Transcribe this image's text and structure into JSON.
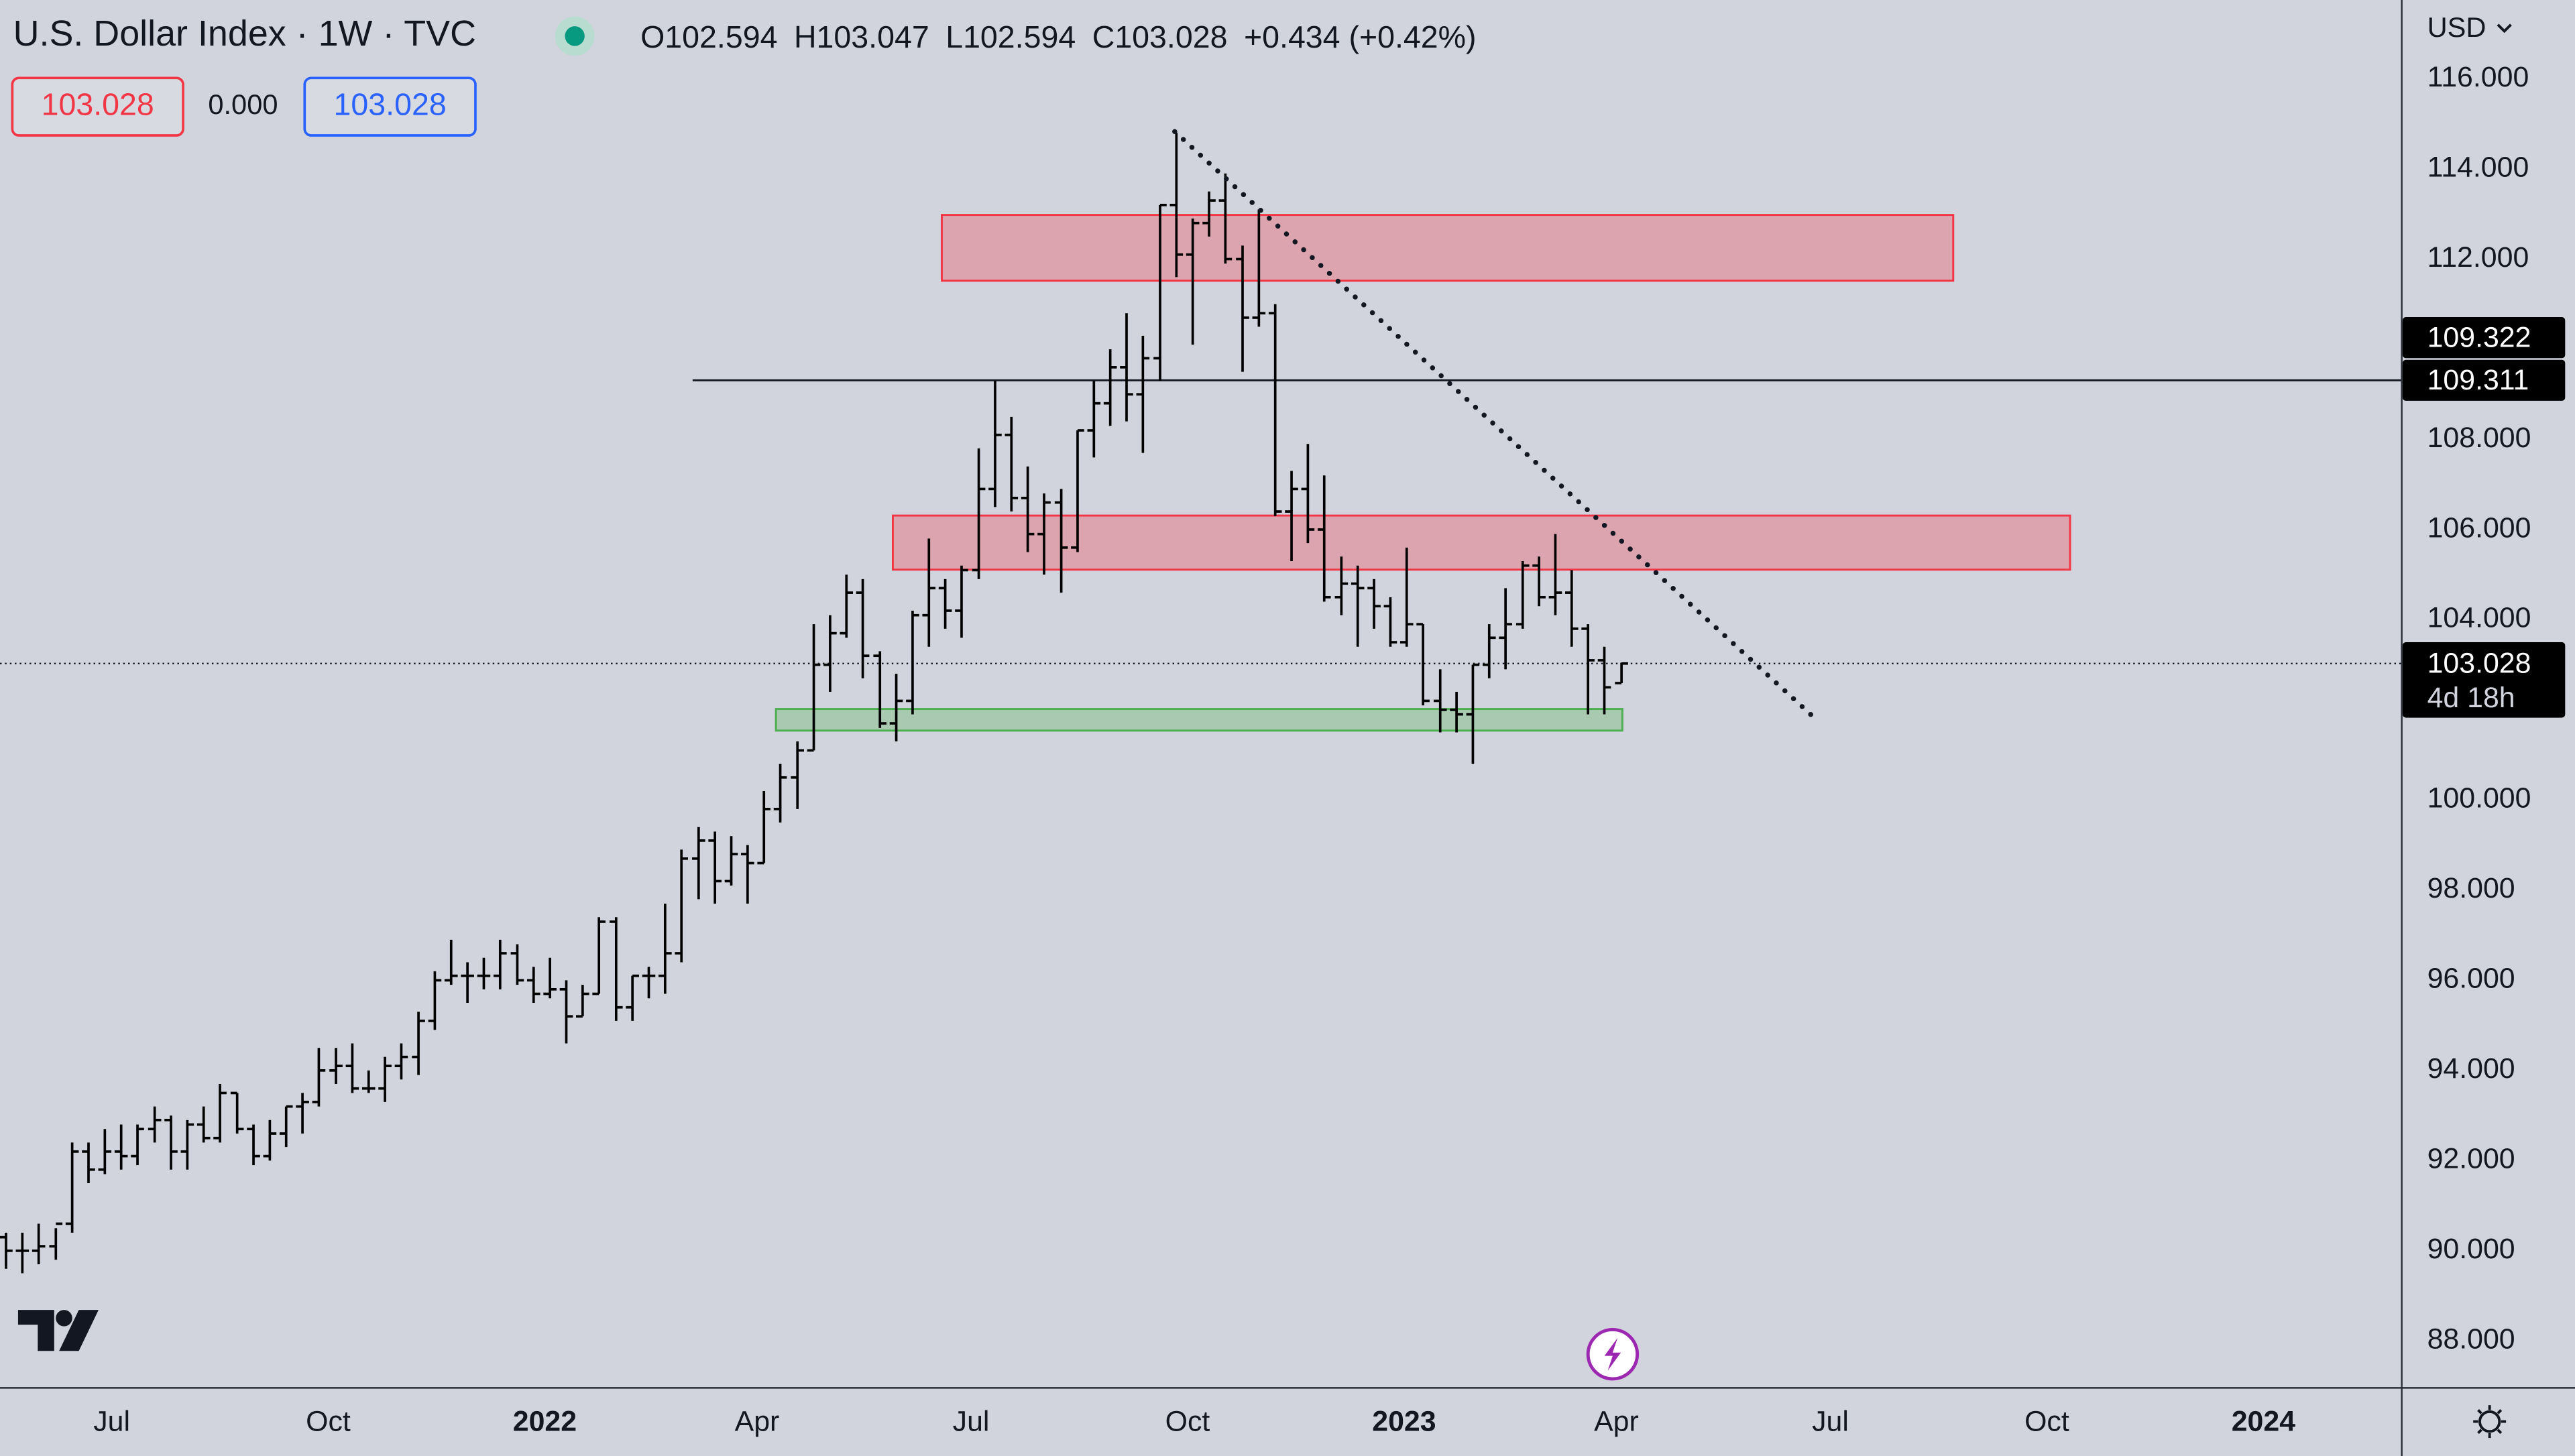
{
  "header": {
    "title": "U.S. Dollar Index · 1W · TVC",
    "ohlc": [
      {
        "label": "O",
        "value": "102.594"
      },
      {
        "label": "H",
        "value": "103.047"
      },
      {
        "label": "L",
        "value": "102.594"
      },
      {
        "label": "C",
        "value": "103.028"
      }
    ],
    "change": "+0.434 (+0.42%)"
  },
  "toolbar": {
    "sell": "103.028",
    "spread": "0.000",
    "buy": "103.028"
  },
  "currency": "USD",
  "chart_data": {
    "type": "ohlc",
    "color": "#000000",
    "x": [
      2021.373,
      2021.392,
      2021.411,
      2021.431,
      2021.45,
      2021.469,
      2021.488,
      2021.507,
      2021.526,
      2021.546,
      2021.565,
      2021.584,
      2021.603,
      2021.622,
      2021.642,
      2021.661,
      2021.68,
      2021.699,
      2021.718,
      2021.737,
      2021.757,
      2021.776,
      2021.795,
      2021.814,
      2021.833,
      2021.853,
      2021.872,
      2021.891,
      2021.91,
      2021.929,
      2021.948,
      2021.968,
      2021.987,
      2022.006,
      2022.025,
      2022.044,
      2022.063,
      2022.083,
      2022.102,
      2022.121,
      2022.14,
      2022.159,
      2022.179,
      2022.198,
      2022.217,
      2022.236,
      2022.255,
      2022.274,
      2022.294,
      2022.313,
      2022.332,
      2022.351,
      2022.37,
      2022.39,
      2022.409,
      2022.428,
      2022.447,
      2022.466,
      2022.485,
      2022.505,
      2022.524,
      2022.543,
      2022.562,
      2022.581,
      2022.601,
      2022.62,
      2022.639,
      2022.658,
      2022.677,
      2022.696,
      2022.716,
      2022.735,
      2022.754,
      2022.773,
      2022.792,
      2022.812,
      2022.831,
      2022.85,
      2022.869,
      2022.888,
      2022.907,
      2022.927,
      2022.946,
      2022.965,
      2022.984,
      2023.003,
      2023.022,
      2023.042,
      2023.061,
      2023.08,
      2023.099,
      2023.118,
      2023.138,
      2023.157,
      2023.176,
      2023.195,
      2023.214,
      2023.233,
      2023.253
    ],
    "open": [
      90.3,
      90.0,
      90.0,
      90.1,
      90.6,
      92.2,
      91.8,
      92.2,
      92.1,
      92.7,
      92.9,
      92.2,
      92.8,
      92.5,
      93.5,
      92.7,
      92.1,
      92.6,
      93.2,
      93.3,
      94.0,
      94.1,
      93.6,
      93.6,
      94.1,
      94.3,
      95.1,
      96.0,
      96.1,
      96.1,
      96.1,
      96.6,
      96.0,
      95.7,
      95.8,
      95.2,
      95.7,
      97.3,
      95.4,
      96.1,
      96.1,
      96.6,
      98.7,
      99.1,
      98.2,
      98.8,
      98.6,
      99.8,
      100.5,
      101.1,
      103.0,
      103.7,
      104.6,
      103.2,
      101.7,
      102.2,
      104.1,
      104.7,
      104.2,
      105.1,
      106.9,
      108.1,
      106.7,
      105.9,
      106.6,
      105.6,
      108.2,
      108.8,
      109.6,
      109.0,
      109.8,
      113.2,
      112.1,
      112.8,
      113.3,
      112.0,
      110.7,
      110.8,
      106.4,
      106.9,
      106.0,
      104.5,
      104.8,
      104.7,
      104.3,
      103.5,
      103.9,
      102.2,
      102.0,
      101.9,
      103.0,
      103.6,
      103.9,
      105.2,
      104.5,
      104.6,
      103.8,
      103.1,
      102.594
    ],
    "high": [
      90.4,
      90.4,
      90.6,
      90.5,
      92.4,
      92.4,
      92.7,
      92.8,
      92.8,
      93.2,
      93.0,
      92.9,
      93.2,
      93.7,
      93.5,
      92.8,
      92.9,
      93.2,
      93.5,
      94.5,
      94.5,
      94.6,
      94.0,
      94.3,
      94.6,
      95.3,
      96.2,
      96.9,
      96.4,
      96.5,
      96.9,
      96.8,
      96.3,
      96.5,
      96.0,
      95.9,
      97.4,
      97.4,
      96.1,
      96.3,
      97.7,
      98.9,
      99.4,
      99.3,
      99.2,
      99.0,
      100.2,
      100.8,
      101.3,
      103.9,
      104.1,
      105.0,
      104.9,
      103.3,
      102.8,
      104.2,
      105.8,
      104.9,
      105.2,
      107.8,
      109.3,
      108.5,
      107.4,
      106.8,
      106.9,
      108.2,
      109.3,
      110.0,
      110.8,
      110.3,
      113.2,
      114.8,
      112.9,
      113.5,
      113.9,
      112.3,
      113.1,
      111.0,
      107.3,
      107.9,
      107.2,
      105.4,
      105.2,
      104.9,
      104.5,
      105.6,
      103.9,
      102.9,
      102.4,
      103.0,
      103.9,
      104.7,
      105.3,
      105.4,
      105.9,
      105.1,
      103.9,
      103.4,
      103.047
    ],
    "low": [
      89.6,
      89.5,
      89.7,
      89.8,
      90.4,
      91.5,
      91.7,
      91.8,
      91.9,
      92.4,
      91.8,
      91.8,
      92.4,
      92.4,
      92.6,
      91.9,
      92.0,
      92.3,
      92.6,
      93.2,
      93.7,
      93.5,
      93.5,
      93.3,
      93.8,
      93.9,
      94.9,
      95.9,
      95.5,
      95.8,
      95.8,
      95.9,
      95.5,
      95.6,
      94.6,
      95.2,
      95.7,
      95.1,
      95.1,
      95.6,
      95.7,
      96.4,
      97.8,
      97.7,
      98.1,
      97.7,
      98.6,
      99.5,
      99.8,
      101.1,
      102.4,
      103.6,
      102.7,
      101.6,
      101.3,
      101.9,
      103.4,
      103.8,
      103.6,
      104.9,
      106.5,
      106.4,
      105.5,
      105.0,
      104.6,
      105.5,
      107.6,
      108.3,
      108.4,
      107.7,
      109.3,
      111.6,
      110.1,
      112.5,
      111.9,
      109.5,
      110.5,
      106.3,
      105.3,
      105.7,
      104.4,
      104.1,
      103.4,
      103.8,
      103.4,
      103.4,
      102.1,
      101.5,
      101.5,
      100.8,
      102.7,
      102.9,
      103.8,
      104.3,
      104.1,
      103.4,
      101.9,
      101.9,
      102.594
    ],
    "close": [
      90.0,
      90.0,
      90.1,
      90.6,
      92.2,
      91.8,
      92.2,
      92.1,
      92.7,
      92.9,
      92.2,
      92.8,
      92.5,
      93.5,
      92.7,
      92.1,
      92.6,
      93.2,
      93.3,
      94.0,
      94.1,
      93.6,
      93.6,
      94.1,
      94.3,
      95.1,
      96.0,
      96.1,
      96.1,
      96.1,
      96.6,
      96.0,
      95.7,
      95.8,
      95.2,
      95.7,
      97.3,
      95.4,
      96.1,
      96.1,
      96.6,
      98.7,
      99.1,
      98.2,
      98.8,
      98.6,
      99.8,
      100.5,
      101.1,
      103.0,
      103.7,
      104.6,
      103.2,
      101.7,
      102.2,
      104.1,
      104.7,
      104.2,
      105.1,
      106.9,
      108.1,
      106.7,
      105.9,
      106.6,
      105.6,
      108.2,
      108.8,
      109.6,
      109.0,
      109.8,
      113.2,
      112.1,
      112.8,
      113.3,
      112.0,
      110.7,
      110.8,
      106.4,
      106.9,
      106.0,
      104.5,
      104.8,
      104.7,
      104.3,
      103.5,
      103.9,
      102.2,
      102.0,
      101.9,
      103.0,
      103.6,
      103.9,
      105.2,
      104.5,
      104.6,
      103.8,
      103.1,
      102.5,
      103.028
    ],
    "xlim": [
      2021.366,
      2024.16
    ],
    "xticks": [
      {
        "value": 2021.496,
        "label": "Jul"
      },
      {
        "value": 2021.748,
        "label": "Oct"
      },
      2022,
      {
        "value": 2022.247,
        "label": "Apr"
      },
      {
        "value": 2022.496,
        "label": "Jul"
      },
      {
        "value": 2022.748,
        "label": "Oct"
      },
      2023,
      {
        "value": 2023.247,
        "label": "Apr"
      },
      {
        "value": 2023.496,
        "label": "Jul"
      },
      {
        "value": 2023.748,
        "label": "Oct"
      },
      2024
    ],
    "ylim": [
      86.976,
      117.748
    ],
    "yticks": [
      {
        "value": 88,
        "label": "88.000"
      },
      {
        "value": 90,
        "label": "90.000"
      },
      {
        "value": 92,
        "label": "92.000"
      },
      {
        "value": 94,
        "label": "94.000"
      },
      {
        "value": 96,
        "label": "96.000"
      },
      {
        "value": 98,
        "label": "98.000"
      },
      {
        "value": 100,
        "label": "100.000"
      },
      {
        "value": 102,
        "label": "102.000"
      },
      {
        "value": 104,
        "label": "104.000"
      },
      {
        "value": 106,
        "label": "106.000"
      },
      {
        "value": 108,
        "label": "108.000"
      },
      {
        "value": 110,
        "label": "110.000"
      },
      {
        "value": 112,
        "label": "112.000"
      },
      {
        "value": 114,
        "label": "114.000"
      },
      {
        "value": 116,
        "label": "116.000"
      }
    ],
    "grid": false,
    "zones": [
      {
        "x0": 2022.462,
        "x1": 2023.639,
        "y0": 111.52,
        "y1": 112.98,
        "color": "#f23645"
      },
      {
        "x0": 2022.405,
        "x1": 2023.775,
        "y0": 105.11,
        "y1": 106.31,
        "color": "#f23645"
      },
      {
        "x0": 2022.269,
        "x1": 2023.254,
        "y0": 101.54,
        "y1": 102.02,
        "color": "#4caf50"
      }
    ],
    "trendline": {
      "x": [
        2022.733,
        2023.477
      ],
      "y": [
        114.83,
        101.83
      ]
    },
    "marker_price": 109.322,
    "price_line": {
      "value": 109.311,
      "start": 2022.172
    },
    "last_price": {
      "value": 103.028,
      "countdown": "4d 18h"
    }
  }
}
